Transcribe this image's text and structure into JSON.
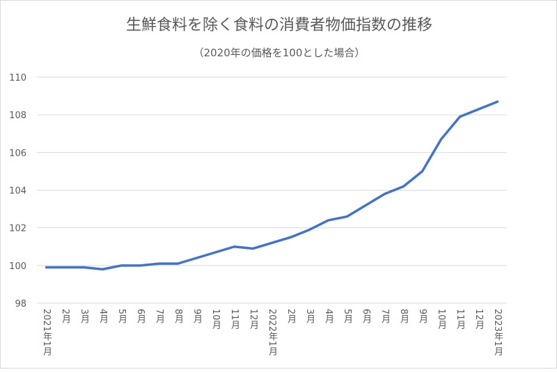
{
  "chart_data": {
    "type": "line",
    "title": "生鮮食料を除く食料の消費者物価指数の推移",
    "subtitle": "（2020年の価格を100とした場合）",
    "xlabel": "",
    "ylabel": "",
    "ylim": [
      98,
      110
    ],
    "yticks": [
      "98",
      "100",
      "102",
      "104",
      "106",
      "108",
      "110"
    ],
    "grid": true,
    "legend": "none",
    "line_color": "#4472c4",
    "grid_color": "#d9d9d9",
    "text_color": "#595959",
    "categories": [
      "2021年1月",
      "2月",
      "3月",
      "4月",
      "5月",
      "6月",
      "7月",
      "8月",
      "9月",
      "10月",
      "11月",
      "12月",
      "2022年1月",
      "2月",
      "3月",
      "4月",
      "5月",
      "6月",
      "7月",
      "8月",
      "9月",
      "10月",
      "11月",
      "12月",
      "2023年1月"
    ],
    "values": [
      99.9,
      99.9,
      99.9,
      99.8,
      100.0,
      100.0,
      100.1,
      100.1,
      100.4,
      100.7,
      101.0,
      100.9,
      101.2,
      101.5,
      101.9,
      102.4,
      102.6,
      103.2,
      103.8,
      104.2,
      105.0,
      106.7,
      107.9,
      108.3,
      108.7
    ]
  }
}
